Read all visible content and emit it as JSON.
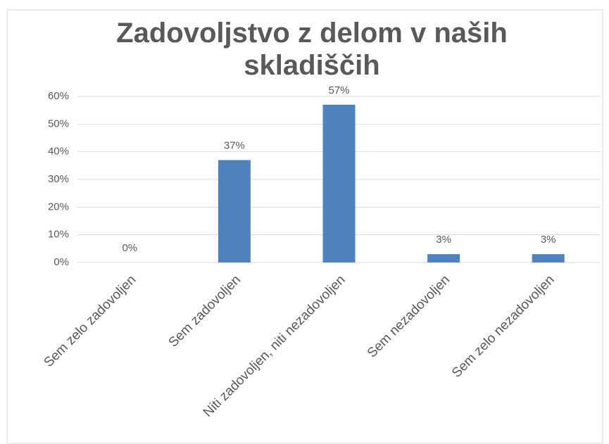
{
  "chart_data": {
    "type": "bar",
    "title": "Zadovoljstvo z delom v naših skladiščih",
    "categories": [
      "Sem zelo zadovoljen",
      "Sem zadovoljen",
      "Niti zadovoljen, niti nezadovoljen",
      "Sem nezadovoljen",
      "Sem zelo nezadovoljen"
    ],
    "values": [
      0,
      37,
      57,
      3,
      3
    ],
    "value_labels": [
      "0%",
      "37%",
      "57%",
      "3%",
      "3%"
    ],
    "color": "#4f81bd",
    "ylim": [
      0,
      60
    ],
    "yticks": [
      {
        "value": 0,
        "label": "0%"
      },
      {
        "value": 10,
        "label": "10%"
      },
      {
        "value": 20,
        "label": "20%"
      },
      {
        "value": 30,
        "label": "30%"
      },
      {
        "value": 40,
        "label": "40%"
      },
      {
        "value": 50,
        "label": "50%"
      },
      {
        "value": 60,
        "label": "60%"
      }
    ],
    "grid": true
  }
}
